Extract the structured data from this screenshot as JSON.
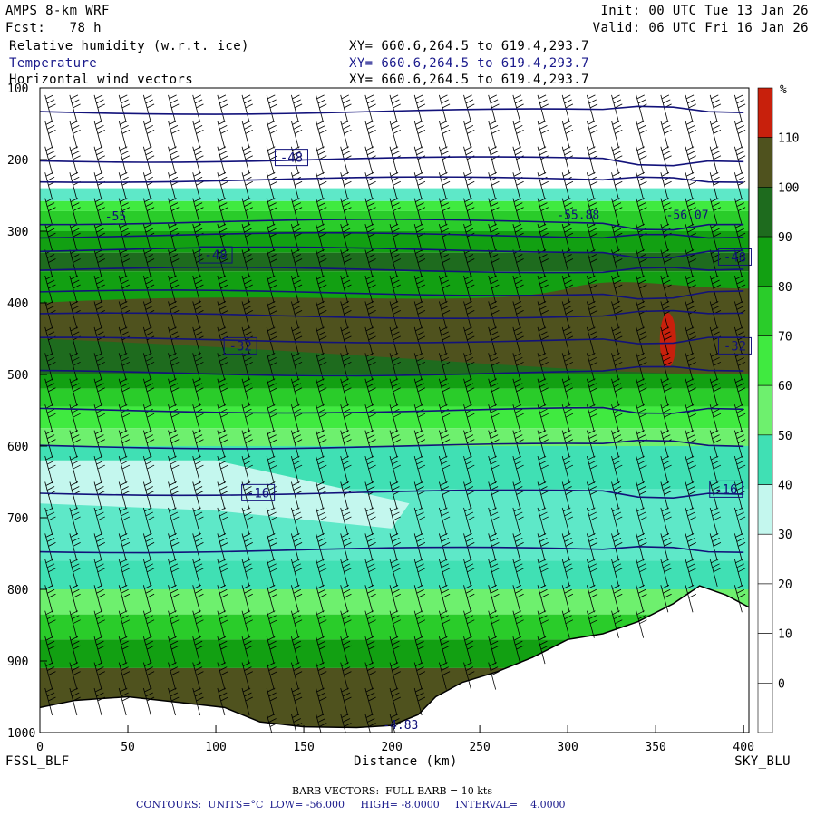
{
  "header": {
    "model": "AMPS 8-km WRF",
    "fcst_label": "Fcst:",
    "fcst_value": "78 h",
    "init": "Init: 00 UTC Tue 13 Jan 26",
    "valid": "Valid: 06 UTC Fri 16 Jan 26",
    "fields": [
      {
        "name": "Relative humidity (w.r.t. ice)",
        "xy": "XY= 660.6,264.5 to 619.4,293.7"
      },
      {
        "name": "Temperature",
        "xy": "XY= 660.6,264.5 to 619.4,293.7"
      },
      {
        "name": "Horizontal wind vectors",
        "xy": "XY= 660.6,264.5 to 619.4,293.7"
      }
    ]
  },
  "chart_data": {
    "type": "heatmap",
    "xlabel": "Distance (km)",
    "x_ticks": [
      "0",
      "50",
      "100",
      "150",
      "200",
      "250",
      "300",
      "350",
      "400"
    ],
    "xlim": [
      0,
      403
    ],
    "ylim": [
      1000,
      100
    ],
    "y_ticks": [
      "100",
      "200",
      "300",
      "400",
      "500",
      "600",
      "700",
      "800",
      "900",
      "1000"
    ],
    "left_endpoint": "FSSL_BLF",
    "right_endpoint": "SKY_BLU",
    "colorbar": {
      "unit": "%",
      "labels": [
        "110",
        "100",
        "90",
        "80",
        "70",
        "60",
        "50",
        "40",
        "30",
        "20",
        "10",
        "0"
      ],
      "colors": [
        "#c8200c",
        "#4f521e",
        "#1e6b1e",
        "#12a012",
        "#2acc2a",
        "#40ea40",
        "#6ef06e",
        "#40e0b4",
        "#5ee8c8",
        "#c4f7ee",
        "#ffffff",
        "#ffffff",
        "#ffffff",
        "#ffffff"
      ]
    },
    "temperature_labels": [
      {
        "text": "-48",
        "x": 143,
        "p": 197
      },
      {
        "text": "-48",
        "x": 100,
        "p": 333
      },
      {
        "text": "-48",
        "x": 395,
        "p": 336
      },
      {
        "text": "-32",
        "x": 114,
        "p": 460
      },
      {
        "text": "-32",
        "x": 395,
        "p": 460
      },
      {
        "text": "-16",
        "x": 124,
        "p": 665
      },
      {
        "text": "-16",
        "x": 390,
        "p": 660
      }
    ],
    "min_labels": [
      {
        "text": "-55",
        "x": 43,
        "p": 285
      },
      {
        "text": "-55.88",
        "x": 306,
        "p": 283
      },
      {
        "text": "-56.07",
        "x": 368,
        "p": 283
      },
      {
        "text": "-4.83",
        "x": 205,
        "p": 995
      }
    ],
    "temperature_isobars_p": [
      133,
      200,
      228,
      287,
      306,
      326,
      354,
      386,
      418,
      452,
      498,
      550,
      600,
      665,
      745
    ],
    "terrain": [
      {
        "x": 0,
        "p": 965
      },
      {
        "x": 20,
        "p": 955
      },
      {
        "x": 50,
        "p": 950
      },
      {
        "x": 80,
        "p": 958
      },
      {
        "x": 105,
        "p": 965
      },
      {
        "x": 125,
        "p": 985
      },
      {
        "x": 150,
        "p": 992
      },
      {
        "x": 180,
        "p": 993
      },
      {
        "x": 200,
        "p": 990
      },
      {
        "x": 215,
        "p": 975
      },
      {
        "x": 225,
        "p": 950
      },
      {
        "x": 240,
        "p": 930
      },
      {
        "x": 260,
        "p": 915
      },
      {
        "x": 280,
        "p": 895
      },
      {
        "x": 300,
        "p": 870
      },
      {
        "x": 320,
        "p": 862
      },
      {
        "x": 340,
        "p": 845
      },
      {
        "x": 360,
        "p": 820
      },
      {
        "x": 375,
        "p": 795
      },
      {
        "x": 390,
        "p": 808
      },
      {
        "x": 403,
        "p": 825
      }
    ]
  },
  "footer": {
    "barb_note": "BARB VECTORS:  FULL BARB = 10 kts",
    "contours": "CONTOURS:  UNITS=°C  LOW= -56.000     HIGH= -8.0000     INTERVAL=    4.0000"
  }
}
